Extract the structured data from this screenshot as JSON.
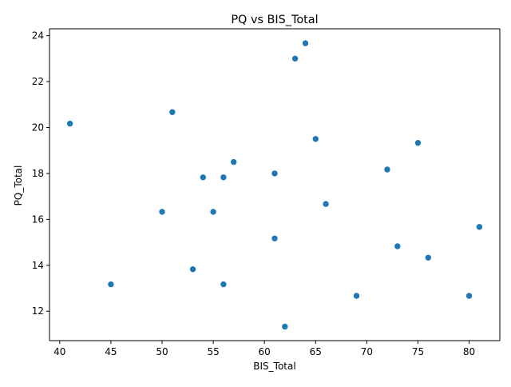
{
  "chart_data": {
    "type": "scatter",
    "title": "PQ vs BIS_Total",
    "xlabel": "BIS_Total",
    "ylabel": "PQ_Total",
    "xlim": [
      39.0,
      83.0
    ],
    "ylim": [
      10.72,
      24.3
    ],
    "xticks": [
      40,
      45,
      50,
      55,
      60,
      65,
      70,
      75,
      80
    ],
    "yticks": [
      12,
      14,
      16,
      18,
      20,
      22,
      24
    ],
    "point_color": "#1f77b4",
    "grid": false,
    "legend": "none",
    "points": [
      {
        "x": 41,
        "y": 20.17
      },
      {
        "x": 45,
        "y": 13.17
      },
      {
        "x": 50,
        "y": 16.33
      },
      {
        "x": 51,
        "y": 20.67
      },
      {
        "x": 53,
        "y": 13.83
      },
      {
        "x": 54,
        "y": 17.83
      },
      {
        "x": 55,
        "y": 16.33
      },
      {
        "x": 56,
        "y": 17.83
      },
      {
        "x": 56,
        "y": 13.17
      },
      {
        "x": 57,
        "y": 18.5
      },
      {
        "x": 61,
        "y": 18.0
      },
      {
        "x": 61,
        "y": 15.17
      },
      {
        "x": 62,
        "y": 11.33
      },
      {
        "x": 63,
        "y": 23.0
      },
      {
        "x": 64,
        "y": 23.67
      },
      {
        "x": 65,
        "y": 19.5
      },
      {
        "x": 66,
        "y": 16.67
      },
      {
        "x": 69,
        "y": 12.67
      },
      {
        "x": 72,
        "y": 18.17
      },
      {
        "x": 73,
        "y": 14.83
      },
      {
        "x": 75,
        "y": 19.33
      },
      {
        "x": 76,
        "y": 14.33
      },
      {
        "x": 80,
        "y": 12.67
      },
      {
        "x": 81,
        "y": 15.67
      }
    ]
  }
}
